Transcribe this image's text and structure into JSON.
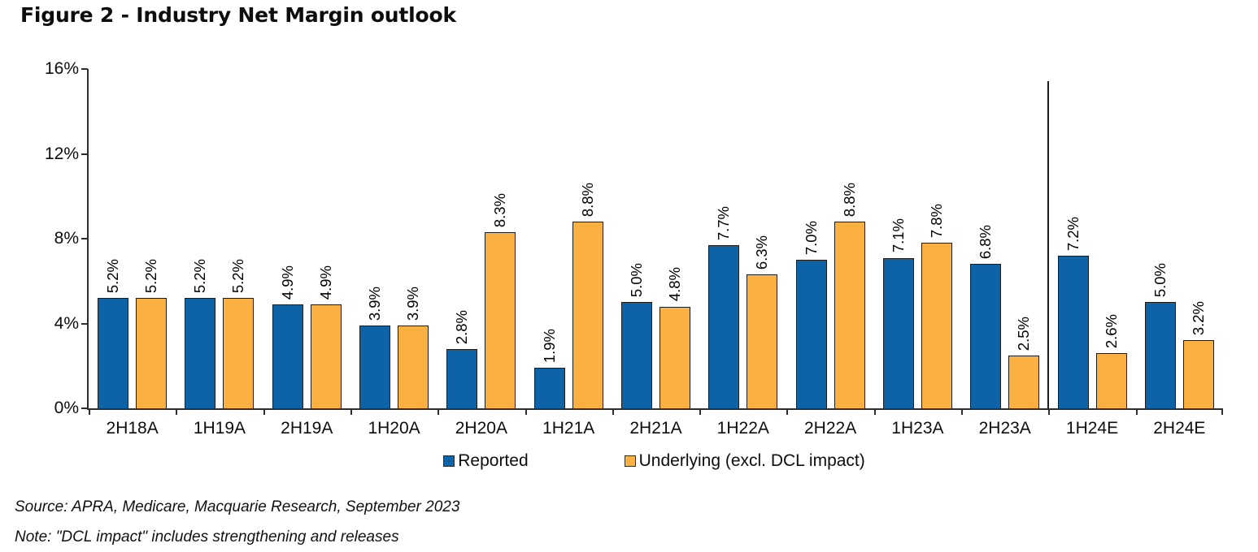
{
  "figure": {
    "title": "Figure 2 - Industry Net Margin outlook",
    "source": "Source: APRA, Medicare, Macquarie Research, September 2023",
    "note": "Note: \"DCL impact\" includes strengthening and releases"
  },
  "colors": {
    "reported": "#0d63a5",
    "underlying": "#fbb042",
    "bar_border": "#1c1c1c",
    "axis": "#2e2e2e",
    "text": "#0d0d0d"
  },
  "chart_data": {
    "type": "bar",
    "title": "Figure 2 - Industry Net Margin outlook",
    "categories": [
      "2H18A",
      "1H19A",
      "2H19A",
      "1H20A",
      "2H20A",
      "1H21A",
      "2H21A",
      "1H22A",
      "2H22A",
      "1H23A",
      "2H23A",
      "1H24E",
      "2H24E"
    ],
    "series": [
      {
        "name": "Reported",
        "color_key": "reported",
        "values": [
          5.2,
          5.2,
          4.9,
          3.9,
          2.8,
          1.9,
          5.0,
          7.7,
          7.0,
          7.1,
          6.8,
          7.2,
          5.0
        ]
      },
      {
        "name": "Underlying (excl. DCL impact)",
        "color_key": "underlying",
        "values": [
          5.2,
          5.2,
          4.9,
          3.9,
          8.3,
          8.8,
          4.8,
          6.3,
          8.8,
          7.8,
          2.5,
          2.6,
          3.2
        ]
      }
    ],
    "value_label_format": "one-decimal-percent",
    "value_label_rotation": "vertical-bottom-to-top",
    "yticks": [
      0,
      4,
      8,
      12,
      16
    ],
    "ytick_labels": [
      "0%",
      "4%",
      "8%",
      "12%",
      "16%"
    ],
    "ylim": [
      0,
      16
    ],
    "xlabel": "",
    "ylabel": "",
    "grid": false,
    "legend_position": "bottom",
    "divider_after_category": "2H23A"
  }
}
